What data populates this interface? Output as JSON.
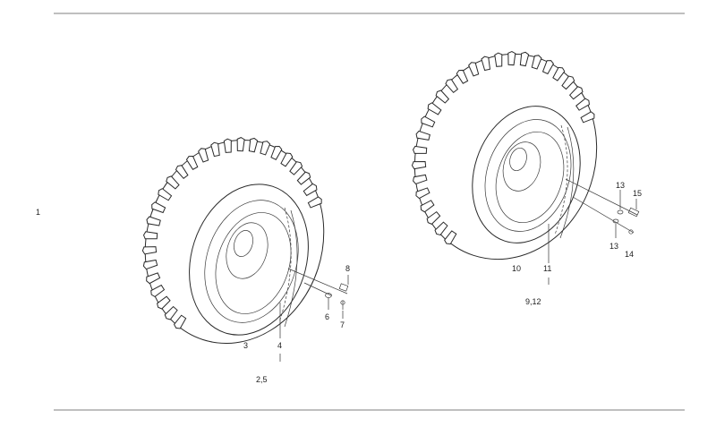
{
  "diagram": {
    "colors": {
      "line": "#2a2a2a",
      "background": "#ffffff",
      "rule": "#555555"
    },
    "callouts": {
      "c1": "1",
      "c2_5": "2,5",
      "c3": "3",
      "c4": "4",
      "c6": "6",
      "c7": "7",
      "c8": "8",
      "c9_12": "9,12",
      "c10": "10",
      "c11": "11",
      "c13a": "13",
      "c13b": "13",
      "c14": "14",
      "c15": "15"
    }
  }
}
